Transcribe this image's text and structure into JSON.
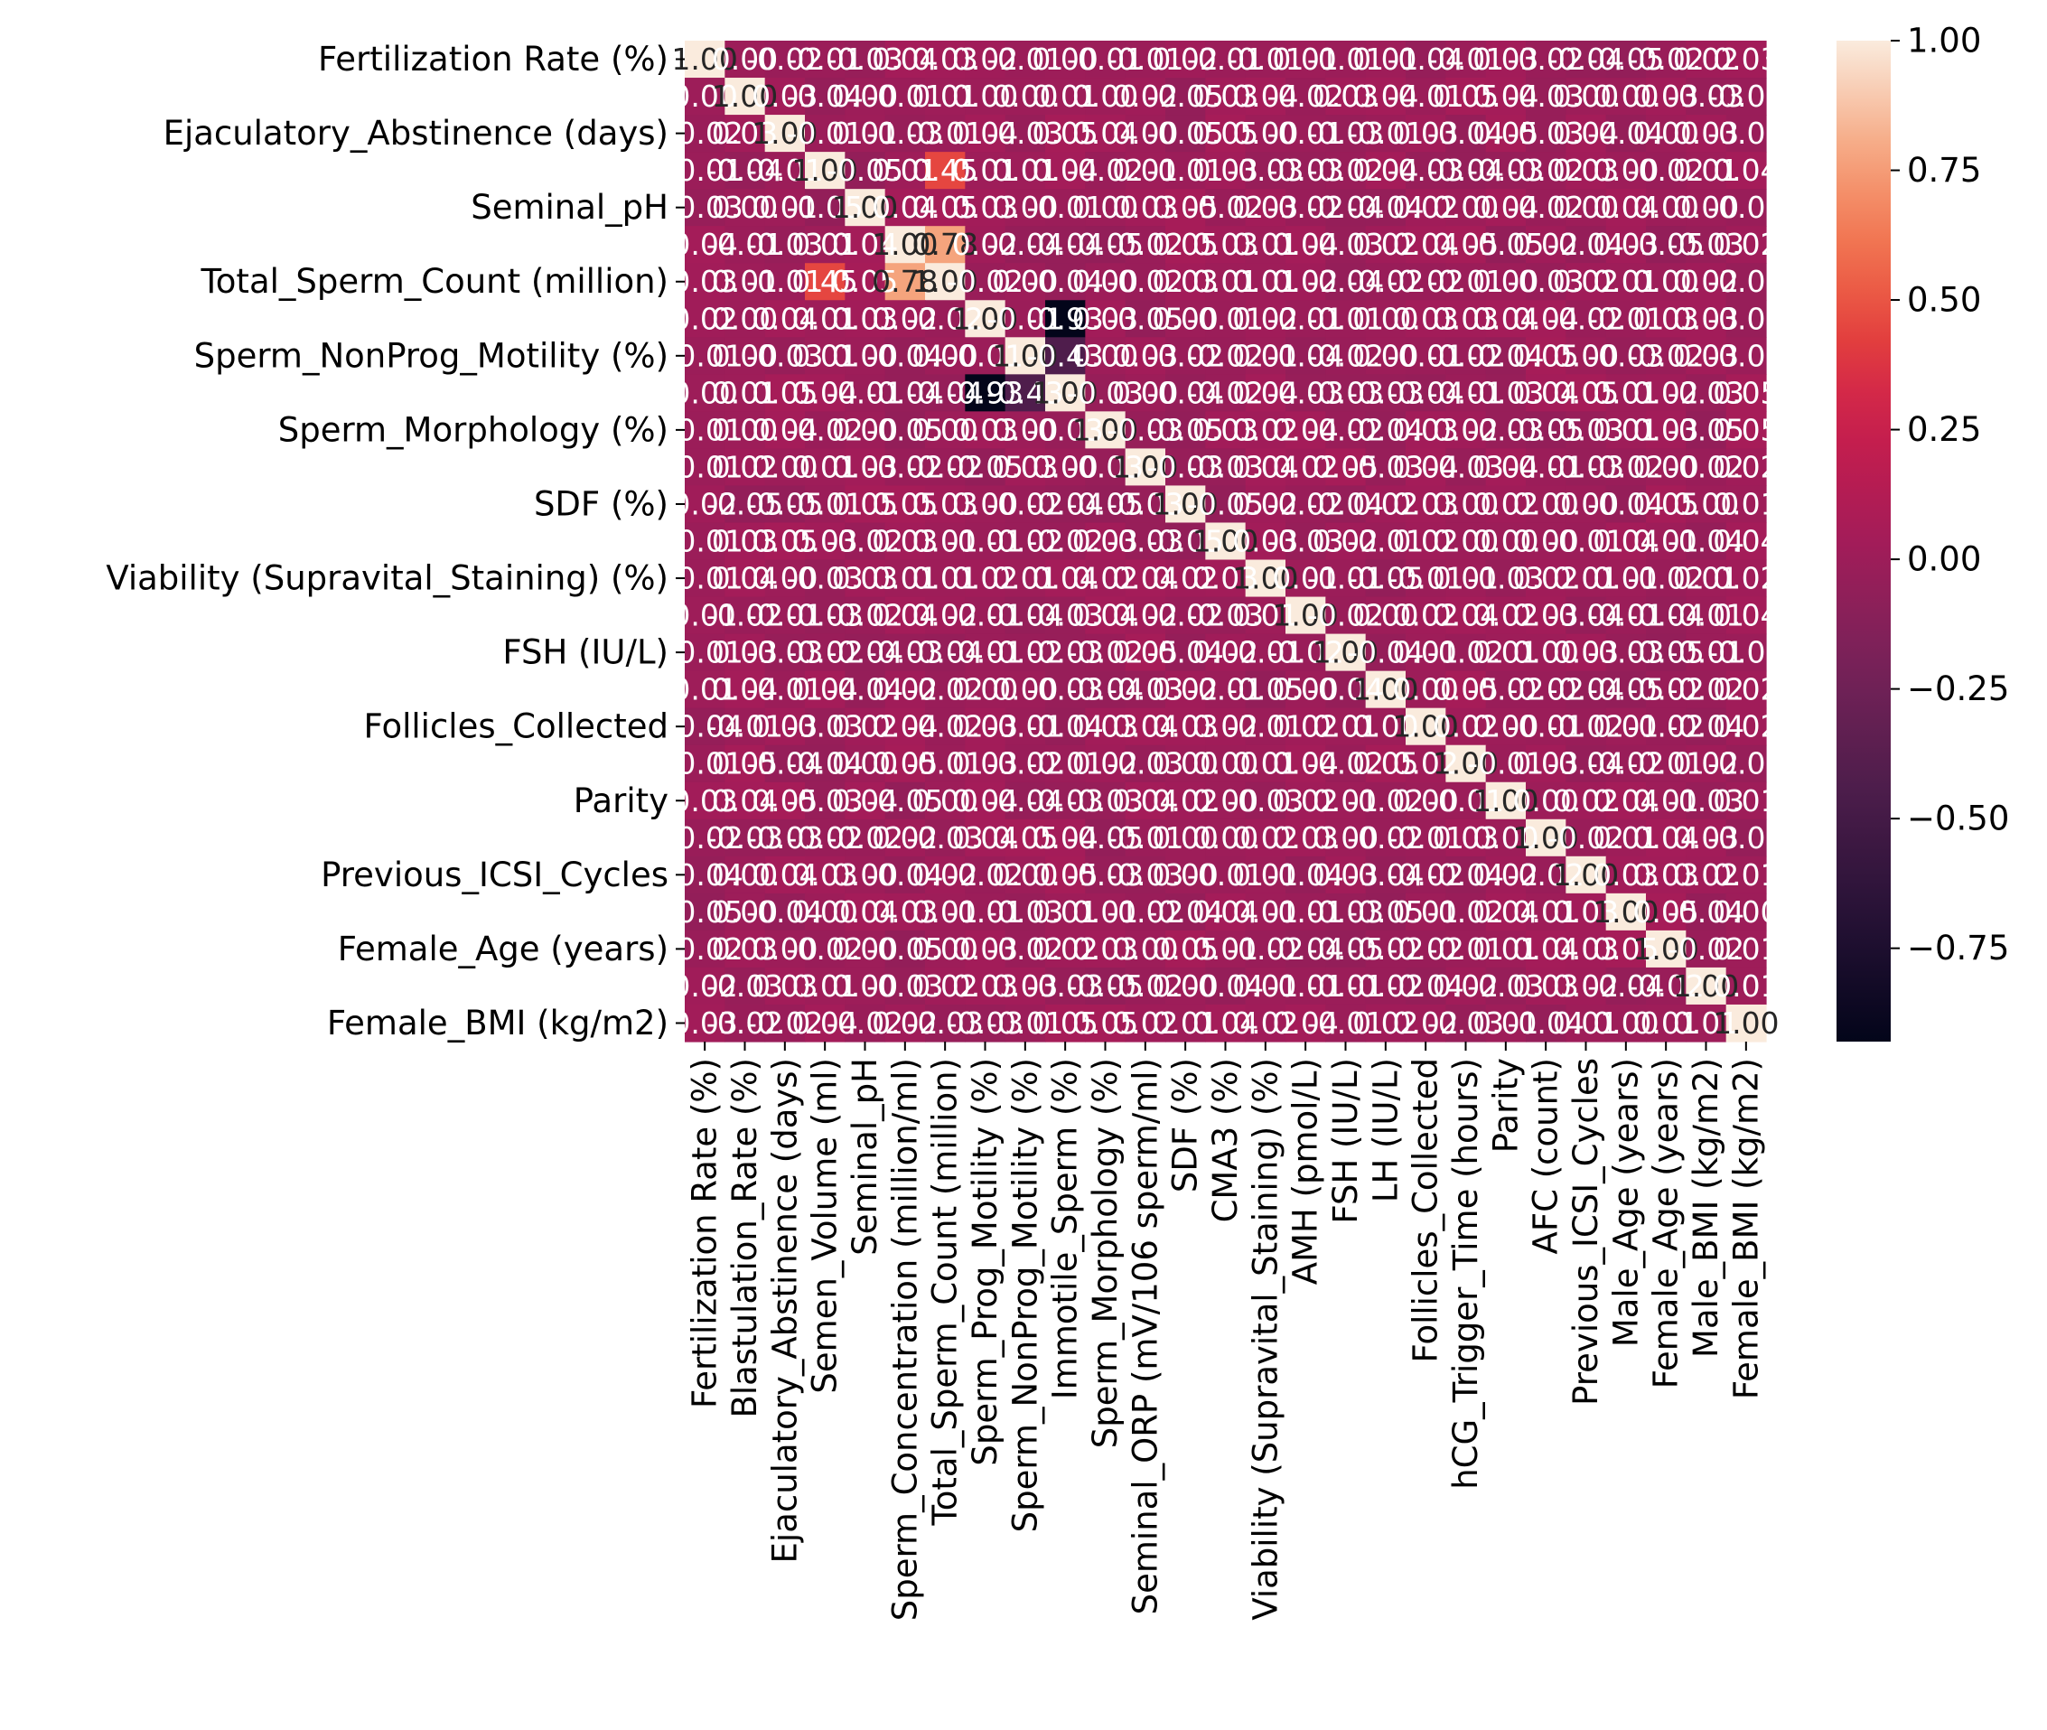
{
  "chart_data": {
    "type": "heatmap",
    "title": "",
    "xlabel": "",
    "ylabel": "",
    "colormap": "rocket",
    "colorbar_range": [
      -0.93,
      1.0
    ],
    "colorbar_ticks": [
      "1.00",
      "0.75",
      "0.50",
      "0.25",
      "0.00",
      "−0.25",
      "−0.50",
      "−0.75"
    ],
    "colorbar_tick_values": [
      1.0,
      0.75,
      0.5,
      0.25,
      0.0,
      -0.25,
      -0.5,
      -0.75
    ],
    "annotation_format": "0.00",
    "variables": [
      "Fertilization Rate (%)",
      "Blastulation_Rate (%)",
      "Ejaculatory_Abstinence (days)",
      "Semen_Volume (ml)",
      "Seminal_pH",
      "Sperm_Concentration (million/ml)",
      "Total_Sperm_Count (million)",
      "Sperm_Prog_Motility (%)",
      "Sperm_NonProg_Motility (%)",
      "Immotile_Sperm (%)",
      "Sperm_Morphology (%)",
      "Seminal_ORP (mV/106 sperm/ml)",
      "SDF (%)",
      "CMA3 (%)",
      "Viability (Supravital_Staining) (%)",
      "AMH (pmol/L)",
      "FSH (IU/L)",
      "LH (IU/L)",
      "Follicles_Collected",
      "hCG_Trigger_Time (hours)",
      "Parity",
      "AFC (count)",
      "Previous_ICSI_Cycles",
      "Male_Age (years)",
      "Female_Age (years)",
      "Male_BMI (kg/m2)",
      "Female_BMI (kg/m2)"
    ],
    "y_tick_labels": [
      "Fertilization Rate (%)",
      "Ejaculatory_Abstinence (days)",
      "Seminal_pH",
      "Total_Sperm_Count (million)",
      "Sperm_NonProg_Motility (%)",
      "Sperm_Morphology (%)",
      "SDF (%)",
      "Viability (Supravital_Staining) (%)",
      "FSH (IU/L)",
      "Follicles_Collected",
      "Parity",
      "Previous_ICSI_Cycles",
      "Female_Age (years)",
      "Female_BMI (kg/m2)"
    ],
    "strong_correlations": [
      {
        "row": "Semen_Volume (ml)",
        "col": "Total_Sperm_Count (million)",
        "value": 0.45
      },
      {
        "row": "Sperm_Concentration (million/ml)",
        "col": "Total_Sperm_Count (million)",
        "value": 0.78
      },
      {
        "row": "Sperm_Prog_Motility (%)",
        "col": "Immotile_Sperm (%)",
        "value": -0.93
      },
      {
        "row": "Sperm_NonProg_Motility (%)",
        "col": "Immotile_Sperm (%)",
        "value": -0.43
      }
    ],
    "off_diagonal_typical_range": [
      -0.05,
      0.05
    ]
  }
}
